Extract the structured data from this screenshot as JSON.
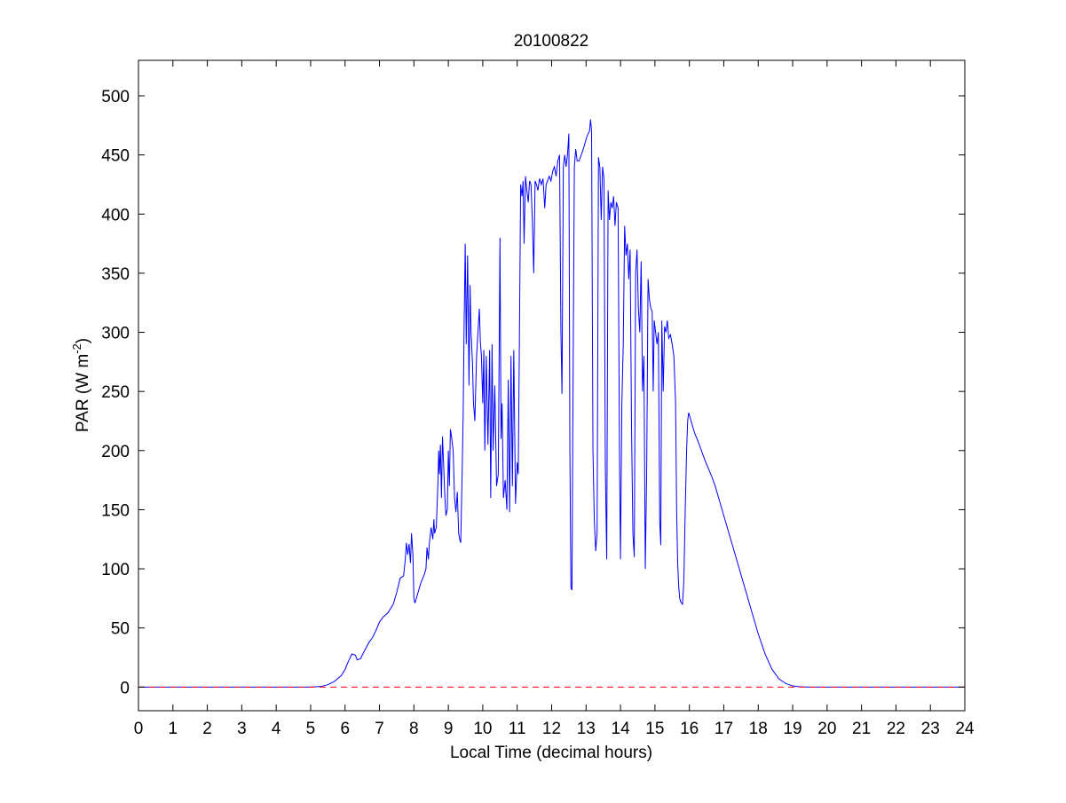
{
  "chart_data": {
    "type": "line",
    "title": "20100822",
    "xlabel": "Local Time (decimal hours)",
    "ylabel": {
      "main": "PAR (W m",
      "sup": "-2",
      "close": ")"
    },
    "xlim": [
      0,
      24
    ],
    "ylim": [
      -20,
      530
    ],
    "xticks": [
      0,
      1,
      2,
      3,
      4,
      5,
      6,
      7,
      8,
      9,
      10,
      11,
      12,
      13,
      14,
      15,
      16,
      17,
      18,
      19,
      20,
      21,
      22,
      23,
      24
    ],
    "yticks": [
      0,
      50,
      100,
      150,
      200,
      250,
      300,
      350,
      400,
      450,
      500
    ],
    "grid": false,
    "series": [
      {
        "color": "#0000ff",
        "style": "solid",
        "points": [
          [
            0,
            0
          ],
          [
            5.0,
            0
          ],
          [
            5.3,
            0.5
          ],
          [
            5.5,
            2
          ],
          [
            5.7,
            5
          ],
          [
            5.9,
            10
          ],
          [
            6.0,
            15
          ],
          [
            6.1,
            22
          ],
          [
            6.2,
            28
          ],
          [
            6.3,
            27
          ],
          [
            6.35,
            23
          ],
          [
            6.45,
            24
          ],
          [
            6.55,
            30
          ],
          [
            6.7,
            38
          ],
          [
            6.8,
            42
          ],
          [
            6.9,
            48
          ],
          [
            7.0,
            55
          ],
          [
            7.1,
            59
          ],
          [
            7.25,
            63
          ],
          [
            7.4,
            70
          ],
          [
            7.5,
            80
          ],
          [
            7.6,
            92
          ],
          [
            7.7,
            94
          ],
          [
            7.75,
            108
          ],
          [
            7.78,
            122
          ],
          [
            7.82,
            112
          ],
          [
            7.86,
            121
          ],
          [
            7.9,
            105
          ],
          [
            7.93,
            130
          ],
          [
            7.97,
            112
          ],
          [
            8.0,
            75
          ],
          [
            8.03,
            71
          ],
          [
            8.1,
            78
          ],
          [
            8.2,
            88
          ],
          [
            8.3,
            95
          ],
          [
            8.35,
            100
          ],
          [
            8.38,
            118
          ],
          [
            8.42,
            108
          ],
          [
            8.45,
            122
          ],
          [
            8.5,
            135
          ],
          [
            8.55,
            125
          ],
          [
            8.58,
            142
          ],
          [
            8.6,
            130
          ],
          [
            8.65,
            135
          ],
          [
            8.7,
            175
          ],
          [
            8.72,
            200
          ],
          [
            8.74,
            180
          ],
          [
            8.77,
            205
          ],
          [
            8.8,
            160
          ],
          [
            8.83,
            212
          ],
          [
            8.86,
            190
          ],
          [
            8.9,
            160
          ],
          [
            8.93,
            145
          ],
          [
            8.97,
            150
          ],
          [
            9.0,
            200
          ],
          [
            9.03,
            170
          ],
          [
            9.06,
            218
          ],
          [
            9.1,
            210
          ],
          [
            9.14,
            200
          ],
          [
            9.18,
            160
          ],
          [
            9.22,
            148
          ],
          [
            9.26,
            165
          ],
          [
            9.3,
            130
          ],
          [
            9.33,
            125
          ],
          [
            9.36,
            122
          ],
          [
            9.4,
            180
          ],
          [
            9.43,
            230
          ],
          [
            9.46,
            310
          ],
          [
            9.49,
            375
          ],
          [
            9.52,
            290
          ],
          [
            9.56,
            365
          ],
          [
            9.6,
            255
          ],
          [
            9.63,
            340
          ],
          [
            9.66,
            300
          ],
          [
            9.7,
            275
          ],
          [
            9.73,
            240
          ],
          [
            9.77,
            225
          ],
          [
            9.82,
            280
          ],
          [
            9.87,
            305
          ],
          [
            9.9,
            320
          ],
          [
            9.93,
            292
          ],
          [
            9.96,
            280
          ],
          [
            10.0,
            240
          ],
          [
            10.03,
            285
          ],
          [
            10.06,
            200
          ],
          [
            10.1,
            280
          ],
          [
            10.15,
            205
          ],
          [
            10.2,
            285
          ],
          [
            10.23,
            160
          ],
          [
            10.27,
            290
          ],
          [
            10.3,
            200
          ],
          [
            10.35,
            255
          ],
          [
            10.4,
            170
          ],
          [
            10.45,
            180
          ],
          [
            10.5,
            380
          ],
          [
            10.53,
            210
          ],
          [
            10.56,
            240
          ],
          [
            10.6,
            160
          ],
          [
            10.65,
            175
          ],
          [
            10.7,
            150
          ],
          [
            10.74,
            260
          ],
          [
            10.78,
            148
          ],
          [
            10.82,
            280
          ],
          [
            10.86,
            170
          ],
          [
            10.9,
            285
          ],
          [
            10.95,
            155
          ],
          [
            11.0,
            190
          ],
          [
            11.03,
            180
          ],
          [
            11.06,
            280
          ],
          [
            11.1,
            425
          ],
          [
            11.14,
            415
          ],
          [
            11.17,
            428
          ],
          [
            11.2,
            375
          ],
          [
            11.24,
            432
          ],
          [
            11.28,
            420
          ],
          [
            11.32,
            410
          ],
          [
            11.36,
            428
          ],
          [
            11.4,
            425
          ],
          [
            11.44,
            395
          ],
          [
            11.48,
            350
          ],
          [
            11.52,
            428
          ],
          [
            11.56,
            425
          ],
          [
            11.6,
            420
          ],
          [
            11.65,
            430
          ],
          [
            11.7,
            425
          ],
          [
            11.75,
            430
          ],
          [
            11.8,
            405
          ],
          [
            11.84,
            425
          ],
          [
            11.88,
            428
          ],
          [
            11.93,
            432
          ],
          [
            11.98,
            428
          ],
          [
            12.03,
            436
          ],
          [
            12.08,
            440
          ],
          [
            12.13,
            432
          ],
          [
            12.18,
            445
          ],
          [
            12.23,
            450
          ],
          [
            12.27,
            300
          ],
          [
            12.3,
            248
          ],
          [
            12.34,
            440
          ],
          [
            12.38,
            450
          ],
          [
            12.42,
            440
          ],
          [
            12.46,
            450
          ],
          [
            12.5,
            468
          ],
          [
            12.53,
            200
          ],
          [
            12.56,
            84
          ],
          [
            12.59,
            82
          ],
          [
            12.63,
            300
          ],
          [
            12.66,
            440
          ],
          [
            12.7,
            455
          ],
          [
            12.74,
            445
          ],
          [
            12.8,
            445
          ],
          [
            12.86,
            450
          ],
          [
            12.92,
            455
          ],
          [
            12.97,
            460
          ],
          [
            13.02,
            465
          ],
          [
            13.06,
            468
          ],
          [
            13.1,
            470
          ],
          [
            13.13,
            480
          ],
          [
            13.16,
            470
          ],
          [
            13.2,
            200
          ],
          [
            13.24,
            140
          ],
          [
            13.28,
            115
          ],
          [
            13.32,
            130
          ],
          [
            13.36,
            448
          ],
          [
            13.4,
            440
          ],
          [
            13.44,
            395
          ],
          [
            13.48,
            440
          ],
          [
            13.52,
            430
          ],
          [
            13.56,
            185
          ],
          [
            13.6,
            108
          ],
          [
            13.64,
            420
          ],
          [
            13.68,
            395
          ],
          [
            13.72,
            410
          ],
          [
            13.76,
            405
          ],
          [
            13.8,
            415
          ],
          [
            13.84,
            390
          ],
          [
            13.88,
            410
          ],
          [
            13.93,
            405
          ],
          [
            13.97,
            200
          ],
          [
            14.0,
            108
          ],
          [
            14.04,
            240
          ],
          [
            14.08,
            290
          ],
          [
            14.12,
            390
          ],
          [
            14.16,
            365
          ],
          [
            14.2,
            375
          ],
          [
            14.24,
            345
          ],
          [
            14.28,
            370
          ],
          [
            14.32,
            220
          ],
          [
            14.36,
            130
          ],
          [
            14.4,
            110
          ],
          [
            14.44,
            350
          ],
          [
            14.48,
            370
          ],
          [
            14.52,
            320
          ],
          [
            14.56,
            300
          ],
          [
            14.6,
            360
          ],
          [
            14.64,
            250
          ],
          [
            14.68,
            280
          ],
          [
            14.72,
            100
          ],
          [
            14.76,
            180
          ],
          [
            14.8,
            345
          ],
          [
            14.84,
            328
          ],
          [
            14.88,
            320
          ],
          [
            14.92,
            318
          ],
          [
            14.95,
            250
          ],
          [
            14.98,
            310
          ],
          [
            15.02,
            300
          ],
          [
            15.06,
            290
          ],
          [
            15.1,
            300
          ],
          [
            15.14,
            140
          ],
          [
            15.17,
            120
          ],
          [
            15.2,
            310
          ],
          [
            15.24,
            250
          ],
          [
            15.28,
            305
          ],
          [
            15.32,
            300
          ],
          [
            15.36,
            310
          ],
          [
            15.4,
            295
          ],
          [
            15.45,
            298
          ],
          [
            15.5,
            290
          ],
          [
            15.55,
            280
          ],
          [
            15.6,
            240
          ],
          [
            15.63,
            150
          ],
          [
            15.66,
            105
          ],
          [
            15.69,
            85
          ],
          [
            15.72,
            75
          ],
          [
            15.75,
            72
          ],
          [
            15.8,
            70
          ],
          [
            15.84,
            90
          ],
          [
            15.88,
            150
          ],
          [
            15.92,
            200
          ],
          [
            15.95,
            225
          ],
          [
            15.98,
            232
          ],
          [
            16.05,
            225
          ],
          [
            16.15,
            215
          ],
          [
            16.25,
            208
          ],
          [
            16.35,
            200
          ],
          [
            16.45,
            192
          ],
          [
            16.55,
            185
          ],
          [
            16.65,
            178
          ],
          [
            16.75,
            170
          ],
          [
            16.85,
            160
          ],
          [
            17.0,
            145
          ],
          [
            17.2,
            125
          ],
          [
            17.4,
            105
          ],
          [
            17.6,
            85
          ],
          [
            17.8,
            65
          ],
          [
            18.0,
            45
          ],
          [
            18.2,
            28
          ],
          [
            18.4,
            15
          ],
          [
            18.6,
            7
          ],
          [
            18.8,
            3
          ],
          [
            19.0,
            1
          ],
          [
            19.2,
            0.3
          ],
          [
            19.5,
            0
          ],
          [
            24,
            0
          ]
        ]
      },
      {
        "color": "#ff0000",
        "style": "dashed",
        "points": [
          [
            0,
            0
          ],
          [
            24,
            0
          ]
        ]
      }
    ]
  }
}
